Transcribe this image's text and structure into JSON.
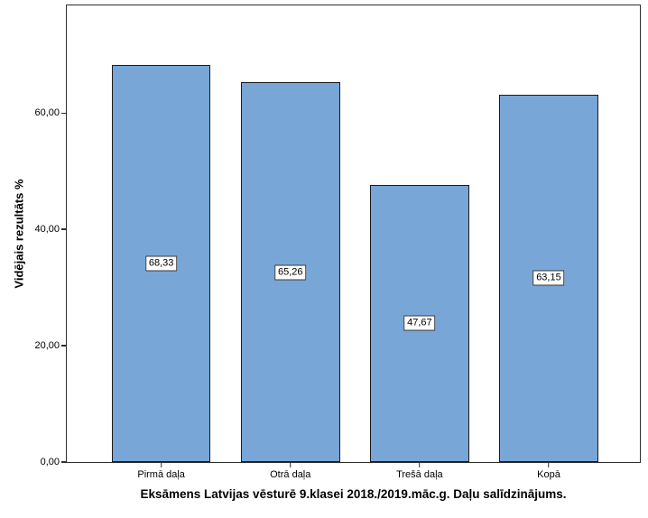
{
  "chart_data": {
    "type": "bar",
    "title": "Eksāmens Latvijas vēsturē 9.klasei 2018./2019.māc.g. Daļu salīdzinājums.",
    "ylabel": "Vidējais rezultāts %",
    "xlabel": "",
    "categories": [
      "Pirmā daļa",
      "Otrā daļa",
      "Trešā daļa",
      "Kopā"
    ],
    "values": [
      68.33,
      65.26,
      47.67,
      63.15
    ],
    "value_labels": [
      "68,33",
      "65,26",
      "47,67",
      "63,15"
    ],
    "ytick_values": [
      0,
      20,
      40,
      60
    ],
    "ytick_labels": [
      "0,00",
      "20,00",
      "40,00",
      "60,00"
    ],
    "ylim": [
      0,
      78.5
    ],
    "grid": false,
    "legend": "none",
    "bar_color": "#78A6D6",
    "bar_border_color": "#1a1a1a",
    "axis_color": "#2e2e2e"
  }
}
